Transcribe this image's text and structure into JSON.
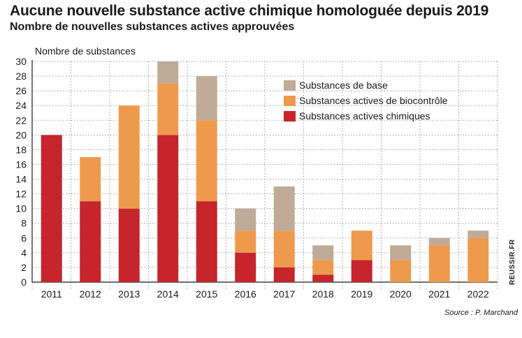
{
  "header": {
    "title": "Aucune nouvelle substance active chimique homologuée depuis 2019",
    "subtitle": "Nombre de nouvelles substances actives approuvées"
  },
  "source": "Source : P. Marchand",
  "watermark": "REUSSIR.FR",
  "chart_data": {
    "type": "bar",
    "stacked": true,
    "title": "Aucune nouvelle substance active chimique homologuée depuis 2019",
    "subtitle": "Nombre de nouvelles substances actives approuvées",
    "xlabel": "",
    "ylabel": "Nombre de substances",
    "ylim": [
      0,
      30
    ],
    "yticks": [
      0,
      2,
      4,
      6,
      8,
      10,
      12,
      14,
      16,
      18,
      20,
      22,
      24,
      26,
      28,
      30
    ],
    "grid": true,
    "legend_position": "top-right",
    "categories": [
      "2011",
      "2012",
      "2013",
      "2014",
      "2015",
      "2016",
      "2017",
      "2018",
      "2019",
      "2020",
      "2021",
      "2022"
    ],
    "series": [
      {
        "name": "Substances actives chimiques",
        "color": "#c5252b",
        "values": [
          20,
          11,
          10,
          20,
          11,
          4,
          2,
          1,
          3,
          0,
          0,
          0
        ]
      },
      {
        "name": "Substances actives de biocontrôle",
        "color": "#ee9a4d",
        "values": [
          0,
          6,
          14,
          7,
          11,
          3,
          5,
          2,
          4,
          3,
          5,
          6
        ]
      },
      {
        "name": "Substances de base",
        "color": "#bfab97",
        "values": [
          0,
          0,
          0,
          3,
          6,
          3,
          6,
          2,
          0,
          2,
          1,
          1
        ]
      }
    ],
    "legend_order": [
      "Substances de base",
      "Substances actives de biocontrôle",
      "Substances actives chimiques"
    ]
  }
}
